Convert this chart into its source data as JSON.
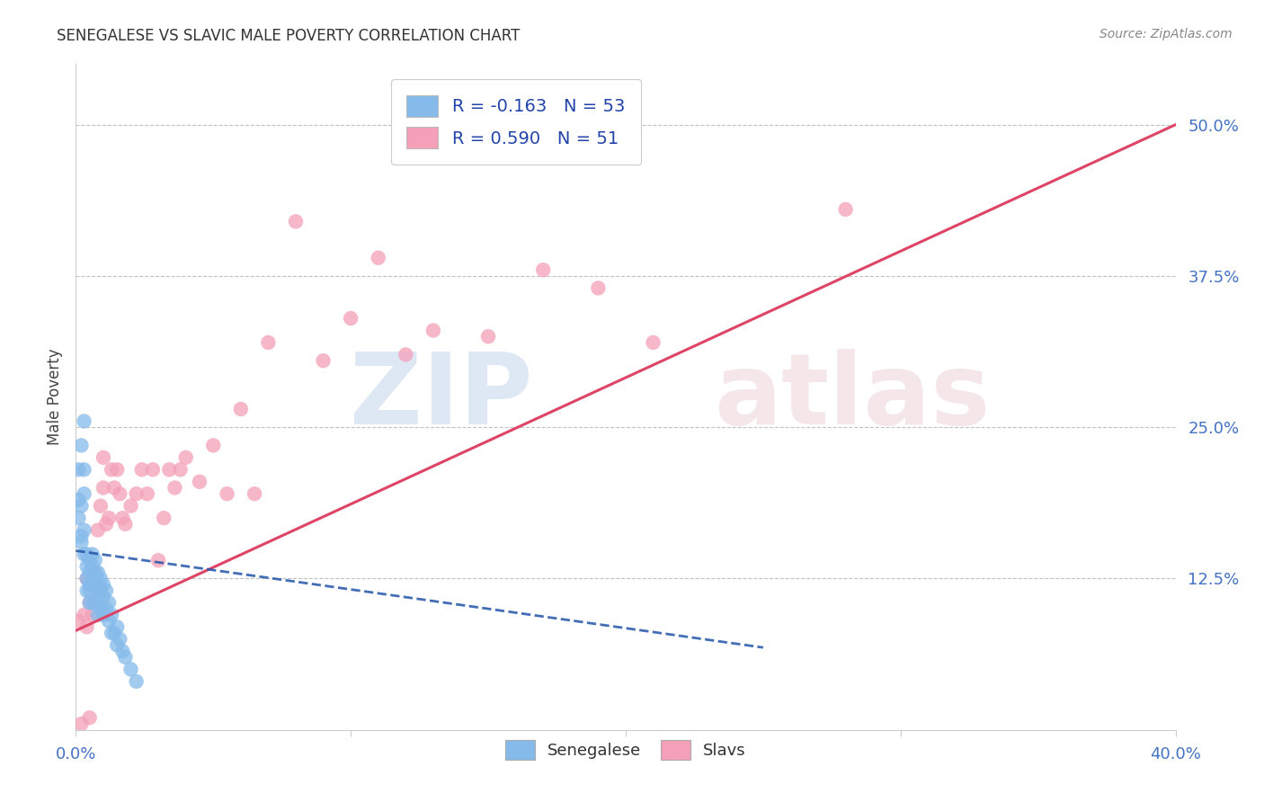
{
  "title": "SENEGALESE VS SLAVIC MALE POVERTY CORRELATION CHART",
  "source": "Source: ZipAtlas.com",
  "ylabel": "Male Poverty",
  "xlim": [
    0.0,
    0.4
  ],
  "ylim": [
    0.0,
    0.55
  ],
  "senegalese_color": "#85BAEA",
  "slavic_color": "#F4A0B8",
  "senegalese_line_color": "#2255AA",
  "slavic_line_color": "#DD4466",
  "R_senegalese": -0.163,
  "N_senegalese": 53,
  "R_slavic": 0.59,
  "N_slavic": 51,
  "sen_intercept": 0.148,
  "sen_slope": -0.32,
  "slav_intercept": 0.082,
  "slav_slope": 1.045,
  "sen_line_xmax": 0.25,
  "slav_line_xstart": 0.0,
  "slav_line_xend": 0.4,
  "ytick_vals": [
    0.125,
    0.25,
    0.375,
    0.5
  ],
  "ytick_labels": [
    "12.5%",
    "25.0%",
    "37.5%",
    "50.0%"
  ],
  "xtick_vals": [
    0.0,
    0.1,
    0.2,
    0.3,
    0.4
  ],
  "xtick_labels": [
    "0.0%",
    "",
    "",
    "",
    "40.0%"
  ],
  "senegalese_x": [
    0.001,
    0.001,
    0.002,
    0.002,
    0.002,
    0.003,
    0.003,
    0.003,
    0.003,
    0.004,
    0.004,
    0.004,
    0.004,
    0.005,
    0.005,
    0.005,
    0.005,
    0.005,
    0.006,
    0.006,
    0.006,
    0.006,
    0.007,
    0.007,
    0.007,
    0.007,
    0.008,
    0.008,
    0.008,
    0.008,
    0.009,
    0.009,
    0.009,
    0.01,
    0.01,
    0.01,
    0.011,
    0.011,
    0.012,
    0.012,
    0.013,
    0.013,
    0.014,
    0.015,
    0.015,
    0.016,
    0.017,
    0.018,
    0.02,
    0.022,
    0.001,
    0.002,
    0.003
  ],
  "senegalese_y": [
    0.215,
    0.175,
    0.235,
    0.185,
    0.155,
    0.255,
    0.215,
    0.195,
    0.165,
    0.145,
    0.135,
    0.125,
    0.115,
    0.14,
    0.13,
    0.12,
    0.115,
    0.105,
    0.145,
    0.135,
    0.12,
    0.105,
    0.14,
    0.13,
    0.12,
    0.105,
    0.13,
    0.12,
    0.11,
    0.095,
    0.125,
    0.115,
    0.1,
    0.12,
    0.11,
    0.095,
    0.115,
    0.1,
    0.105,
    0.09,
    0.095,
    0.08,
    0.08,
    0.085,
    0.07,
    0.075,
    0.065,
    0.06,
    0.05,
    0.04,
    0.19,
    0.16,
    0.145
  ],
  "slavic_x": [
    0.001,
    0.002,
    0.003,
    0.004,
    0.004,
    0.005,
    0.005,
    0.006,
    0.006,
    0.007,
    0.008,
    0.008,
    0.009,
    0.01,
    0.01,
    0.011,
    0.012,
    0.013,
    0.014,
    0.015,
    0.016,
    0.017,
    0.018,
    0.02,
    0.022,
    0.024,
    0.026,
    0.028,
    0.03,
    0.032,
    0.034,
    0.036,
    0.038,
    0.04,
    0.045,
    0.05,
    0.055,
    0.06,
    0.065,
    0.07,
    0.08,
    0.09,
    0.1,
    0.11,
    0.12,
    0.13,
    0.15,
    0.17,
    0.19,
    0.21,
    0.28
  ],
  "slavic_y": [
    0.09,
    0.005,
    0.095,
    0.085,
    0.125,
    0.105,
    0.01,
    0.095,
    0.12,
    0.13,
    0.115,
    0.165,
    0.185,
    0.225,
    0.2,
    0.17,
    0.175,
    0.215,
    0.2,
    0.215,
    0.195,
    0.175,
    0.17,
    0.185,
    0.195,
    0.215,
    0.195,
    0.215,
    0.14,
    0.175,
    0.215,
    0.2,
    0.215,
    0.225,
    0.205,
    0.235,
    0.195,
    0.265,
    0.195,
    0.32,
    0.42,
    0.305,
    0.34,
    0.39,
    0.31,
    0.33,
    0.325,
    0.38,
    0.365,
    0.32,
    0.43
  ]
}
